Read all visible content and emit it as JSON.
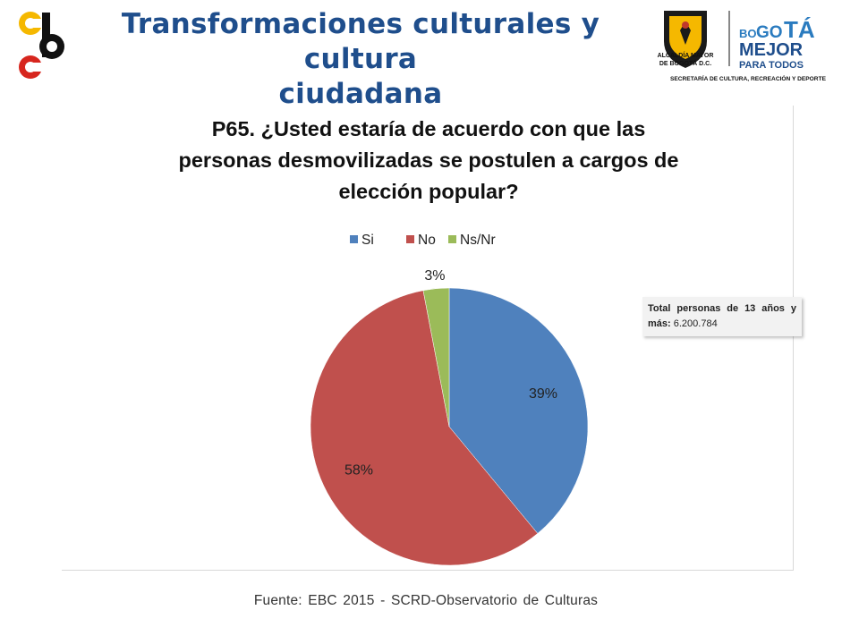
{
  "header": {
    "title_line1": "Transformaciones culturales y cultura",
    "title_line2": "ciudadana"
  },
  "logo_right": {
    "crest_text_line1": "ALCALDÍA MAYOR",
    "crest_text_line2": "DE BOGOTÁ D.C.",
    "brand_bo": "BO",
    "brand_go": "GO",
    "brand_ta": "TÁ",
    "brand_line2": "MEJOR",
    "brand_line3": "PARA TODOS",
    "subtitle": "SECRETARÍA DE CULTURA, RECREACIÓN Y DEPORTE"
  },
  "total_box": {
    "label": "Total personas de 13 años y más:",
    "value": "6.200.784"
  },
  "source": "Fuente: EBC  2015 - SCRD-Observatorio  de Culturas",
  "colors": {
    "title": "#1f4e8c",
    "si": "#4f81bd",
    "no": "#c0504d",
    "nsnr": "#9bbb59"
  },
  "chart_data": {
    "type": "pie",
    "title_lines": [
      "P65. ¿Usted estaría de acuerdo con que las",
      "personas desmovilizadas se postulen a cargos de",
      "elección popular?"
    ],
    "categories": [
      "Si",
      "No",
      "Ns/Nr"
    ],
    "values": [
      39,
      58,
      3
    ],
    "labels": [
      "39%",
      "58%",
      "3%"
    ],
    "colors": [
      "#4f81bd",
      "#c0504d",
      "#9bbb59"
    ],
    "legend_position": "top"
  }
}
